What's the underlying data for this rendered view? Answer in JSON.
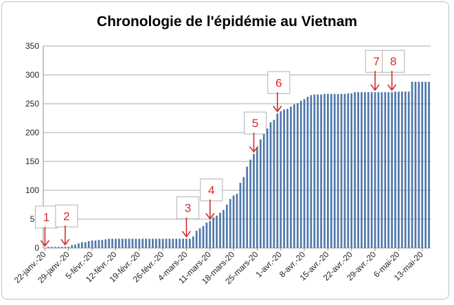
{
  "chart_data": {
    "type": "bar",
    "title": "Chronologie de l'épidémie au Vietnam",
    "xlabel": "",
    "ylabel": "",
    "ylim": [
      0,
      350
    ],
    "y_ticks": [
      0,
      50,
      100,
      150,
      200,
      250,
      300,
      350
    ],
    "x_tick_labels": [
      "22-janv.-20",
      "29-janv.-20",
      "5-févr.-20",
      "12-févr.-20",
      "19-févr.-20",
      "26-févr.-20",
      "4-mars-20",
      "11-mars-20",
      "18-mars-20",
      "25-mars-20",
      "1-avr.-20",
      "8-avr.-20",
      "15-avr.-20",
      "22-avr.-20",
      "29-avr.-20",
      "6-mai-20",
      "13-mai-20"
    ],
    "grid": true,
    "bar_color": "#4f77a8",
    "values": [
      0,
      2,
      2,
      2,
      2,
      2,
      2,
      2,
      5,
      6,
      8,
      10,
      10,
      12,
      13,
      13,
      14,
      14,
      15,
      16,
      16,
      16,
      16,
      16,
      16,
      16,
      16,
      16,
      16,
      16,
      16,
      16,
      16,
      16,
      16,
      16,
      16,
      16,
      16,
      16,
      16,
      16,
      16,
      16,
      20,
      30,
      34,
      38,
      44,
      47,
      53,
      56,
      61,
      66,
      75,
      85,
      91,
      94,
      113,
      123,
      141,
      153,
      163,
      174,
      188,
      203,
      207,
      218,
      222,
      233,
      237,
      240,
      241,
      245,
      249,
      251,
      255,
      258,
      262,
      265,
      266,
      266,
      266,
      267,
      267,
      267,
      267,
      267,
      267,
      267,
      268,
      268,
      270,
      270,
      270,
      270,
      270,
      270,
      270,
      270,
      270,
      270,
      270,
      270,
      271,
      271,
      271,
      271,
      271,
      288,
      288,
      288,
      288,
      288,
      288
    ],
    "callouts": [
      {
        "label": "1",
        "day": 0
      },
      {
        "label": "2",
        "day": 6
      },
      {
        "label": "3",
        "day": 42
      },
      {
        "label": "4",
        "day": 49
      },
      {
        "label": "5",
        "day": 62
      },
      {
        "label": "6",
        "day": 69
      },
      {
        "label": "7",
        "day": 98
      },
      {
        "label": "8",
        "day": 103
      }
    ],
    "callout_color": "#d42a2a"
  }
}
